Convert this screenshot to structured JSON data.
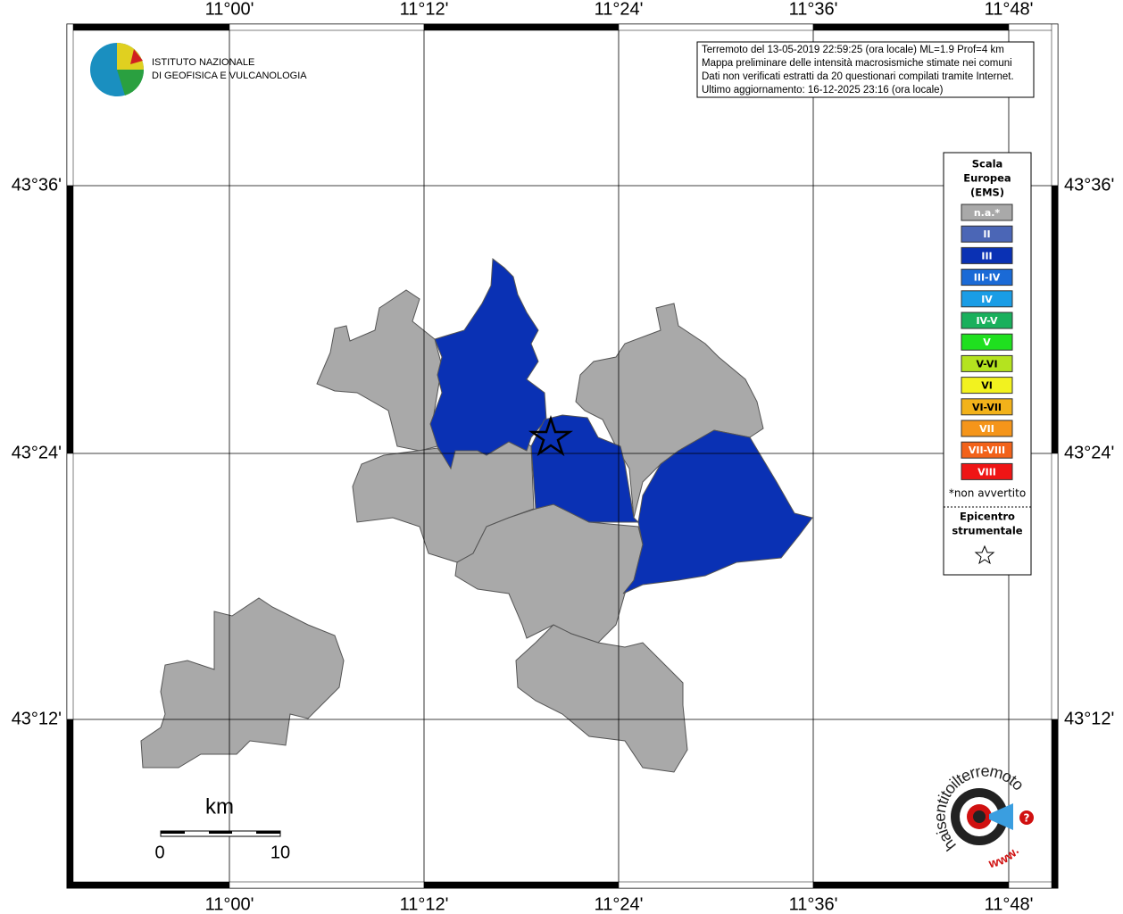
{
  "header_logo": {
    "line1": "ISTITUTO NAZIONALE",
    "line2": "DI GEOFISICA E VULCANOLOGIA"
  },
  "info": [
    "Terremoto del 13-05-2019 22:59:25 (ora locale) ML=1.9 Prof=4 km",
    "Mappa preliminare delle intensità macrosismiche stimate nei comuni",
    "Dati non verificati estratti da 20 questionari compilati tramite Internet.",
    "Ultimo aggiornamento: 16-12-2025 23:16 (ora locale)"
  ],
  "axes": {
    "top": [
      "11°00'",
      "11°12'",
      "11°24'",
      "11°36'",
      "11°48'"
    ],
    "bottom": [
      "11°00'",
      "11°12'",
      "11°24'",
      "11°36'",
      "11°48'"
    ],
    "left": [
      "43°36'",
      "43°24'",
      "43°12'"
    ],
    "right": [
      "43°36'",
      "43°24'",
      "43°12'"
    ]
  },
  "legend": {
    "title": [
      "Scala",
      "Europea",
      "(EMS)"
    ],
    "items": [
      {
        "label": "n.a.*",
        "color": "#a9a9a9"
      },
      {
        "label": "II",
        "color": "#4b66b6"
      },
      {
        "label": "III",
        "color": "#0a31b4"
      },
      {
        "label": "III-IV",
        "color": "#1a6ad6"
      },
      {
        "label": "IV",
        "color": "#1a9de6"
      },
      {
        "label": "IV-V",
        "color": "#19b05c"
      },
      {
        "label": "V",
        "color": "#1fe01f"
      },
      {
        "label": "V-VI",
        "color": "#b4e31f"
      },
      {
        "label": "VI",
        "color": "#f2f21f"
      },
      {
        "label": "VI-VII",
        "color": "#f2b21a"
      },
      {
        "label": "VII",
        "color": "#f5951a"
      },
      {
        "label": "VII-VIII",
        "color": "#f2621a"
      },
      {
        "label": "VIII",
        "color": "#ef1515"
      }
    ],
    "note": "*non avvertito",
    "epicenter": [
      "Epicentro",
      "strumentale"
    ]
  },
  "scale_bar": {
    "unit": "km",
    "min": 0,
    "max": 10
  },
  "site_logo": {
    "text": "haisentitoilterremoto.it",
    "prefix": "www.",
    "mark": "?"
  }
}
